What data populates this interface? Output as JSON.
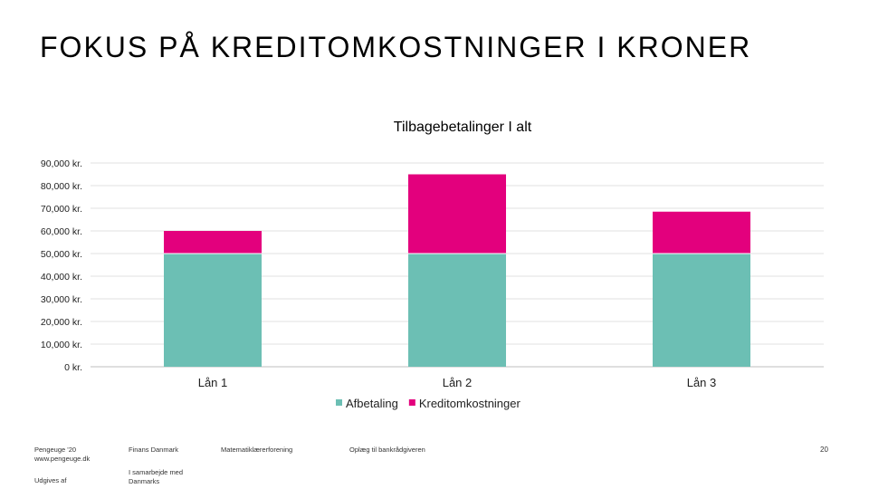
{
  "slide": {
    "title": "FOKUS PÅ KREDITOMKOSTNINGER I KRONER"
  },
  "chart_data": {
    "type": "bar",
    "stacked": true,
    "title": "Tilbagebetalinger I alt",
    "categories": [
      "Lån 1",
      "Lån 2",
      "Lån 3"
    ],
    "series": [
      {
        "name": "Afbetaling",
        "values": [
          50000,
          50000,
          50000
        ],
        "color": "#6cbfb4"
      },
      {
        "name": "Kreditomkostninger",
        "values": [
          10000,
          35000,
          18500
        ],
        "color": "#e3007d"
      }
    ],
    "ylim": [
      0,
      90000
    ],
    "yticks": [
      0,
      10000,
      20000,
      30000,
      40000,
      50000,
      60000,
      70000,
      80000,
      90000
    ],
    "ytick_labels": [
      "0 kr.",
      "10,000 kr.",
      "20,000 kr.",
      "30,000 kr.",
      "40,000 kr.",
      "50,000 kr.",
      "60,000 kr.",
      "70,000 kr.",
      "80,000 kr.",
      "90,000 kr."
    ],
    "grid": true,
    "legend_position": "bottom"
  },
  "footer": {
    "col1_line1": "Pengeuge '20",
    "col1_line2": "www.pengeuge.dk",
    "col1_line3": "Udgives af",
    "col2_line1": "Finans Danmark",
    "col2_line2": "I samarbejde med",
    "col2_line3": "Danmarks",
    "col3": "Matematiklærerforening",
    "col4": "Oplæg til bankrådgiveren",
    "page_number": "20"
  }
}
